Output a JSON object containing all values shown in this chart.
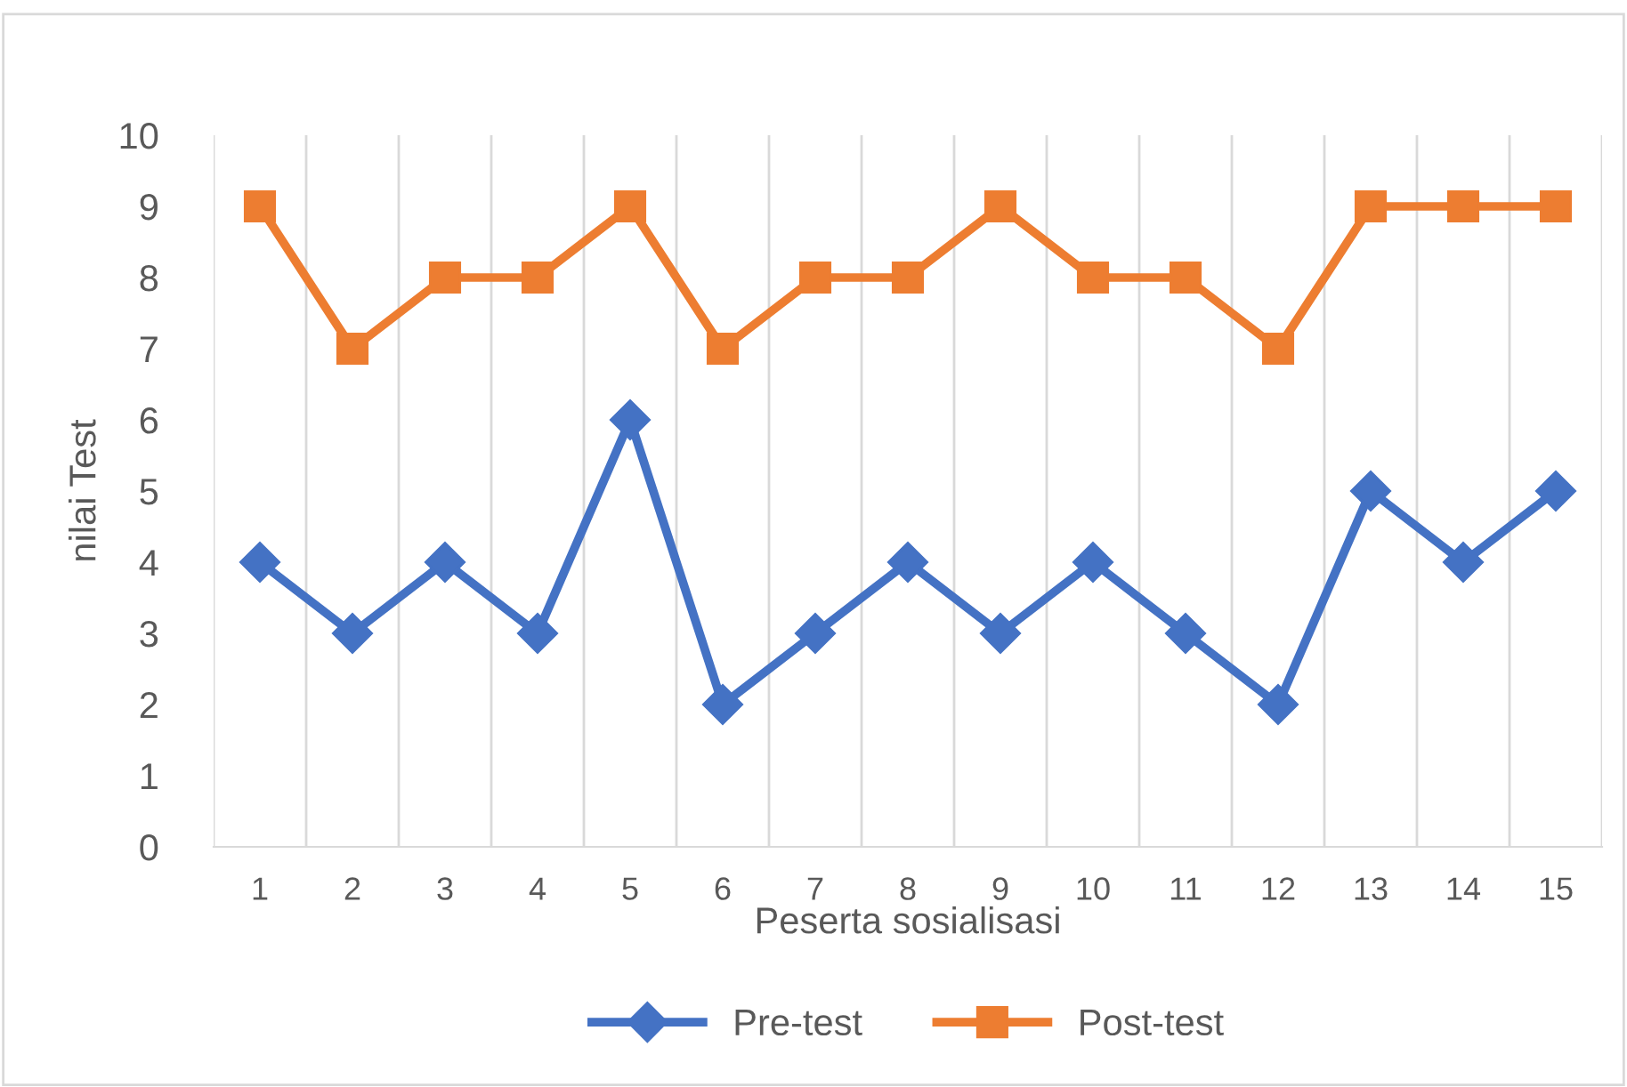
{
  "chart_data": {
    "type": "line",
    "xlabel": "Peserta sosialisasi",
    "ylabel": "nilai Test",
    "categories": [
      "1",
      "2",
      "3",
      "4",
      "5",
      "6",
      "7",
      "8",
      "9",
      "10",
      "11",
      "12",
      "13",
      "14",
      "15"
    ],
    "series": [
      {
        "name": "Pre-test",
        "color": "#4472c4",
        "marker": "diamond",
        "values": [
          4,
          3,
          4,
          3,
          6,
          2,
          3,
          4,
          3,
          4,
          3,
          2,
          5,
          4,
          5
        ]
      },
      {
        "name": "Post-test",
        "color": "#ed7d31",
        "marker": "square",
        "values": [
          9,
          7,
          8,
          8,
          9,
          7,
          8,
          8,
          9,
          8,
          8,
          7,
          9,
          9,
          9
        ]
      }
    ],
    "ylim": [
      0,
      10
    ],
    "yticks": [
      0,
      1,
      2,
      3,
      4,
      5,
      6,
      7,
      8,
      9,
      10
    ],
    "grid": "x",
    "legend": "bottom",
    "line_style": "solid"
  }
}
